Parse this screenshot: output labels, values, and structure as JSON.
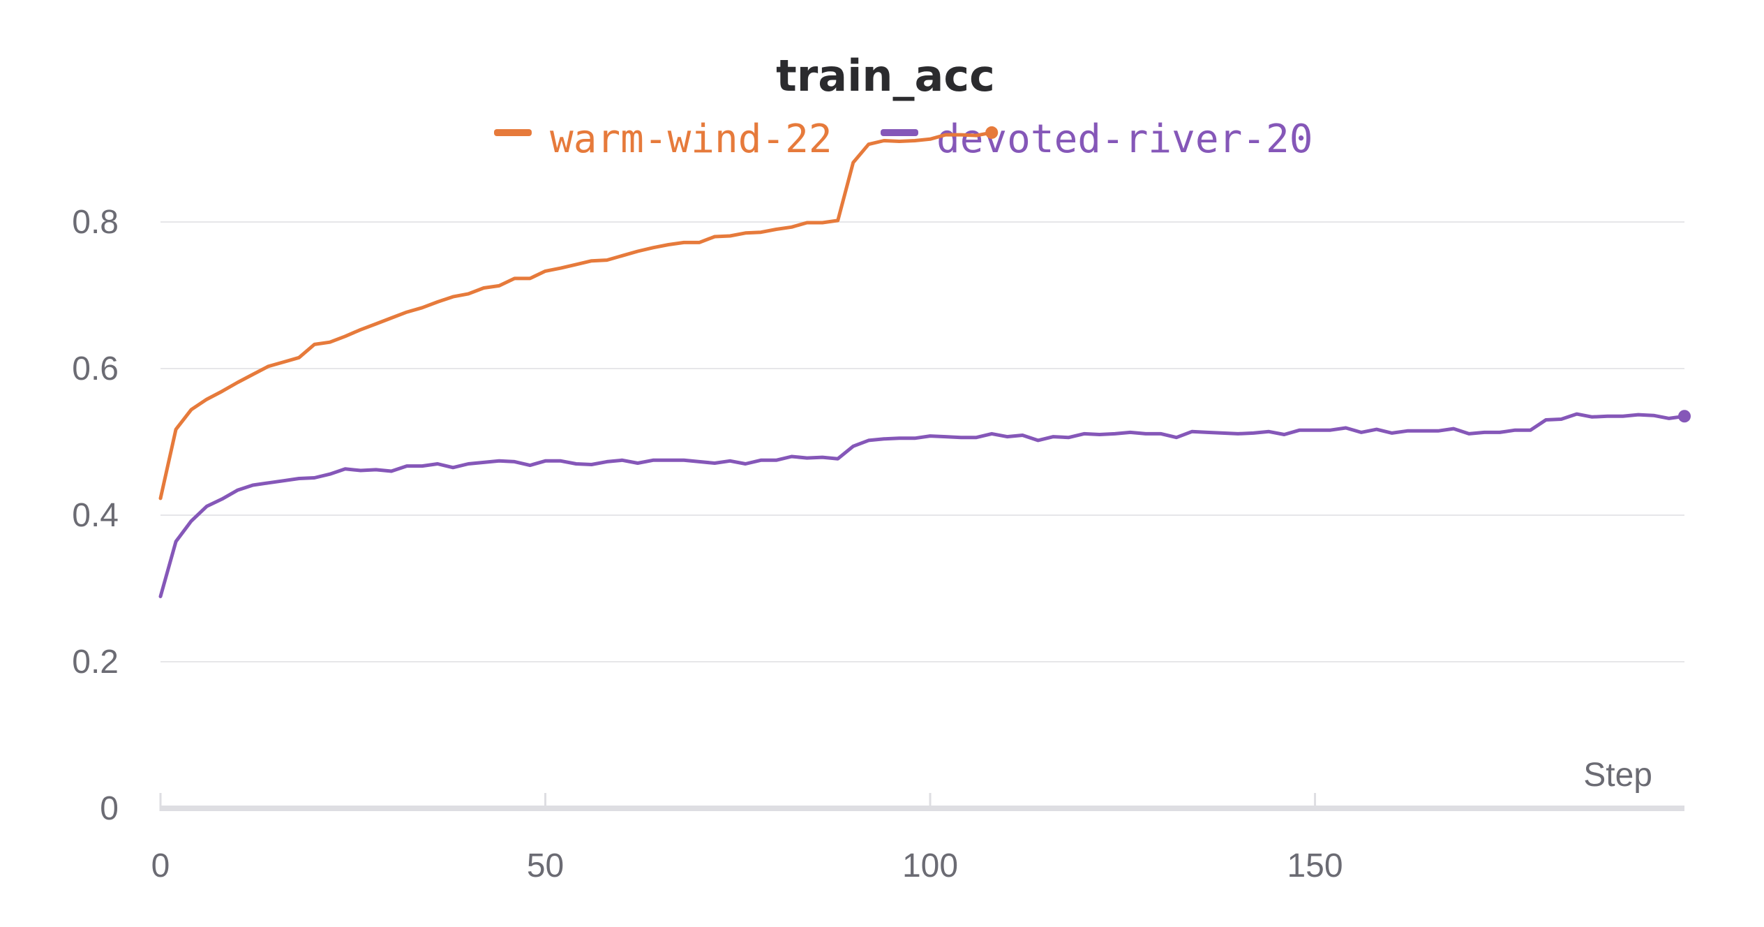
{
  "chart_data": {
    "type": "line",
    "title": "train_acc",
    "xlabel": "Step",
    "ylabel": "",
    "xlim": [
      0,
      198
    ],
    "ylim": [
      0,
      0.9
    ],
    "xticks": [
      0,
      50,
      100,
      150
    ],
    "yticks": [
      0,
      0.2,
      0.4,
      0.6,
      0.8
    ],
    "ytick_labels": [
      "0",
      "0.2",
      "0.4",
      "0.6",
      "0.8"
    ],
    "grid": true,
    "legend_position": "top",
    "series": [
      {
        "name": "warm-wind-22",
        "color": "#e67a3b",
        "x": [
          0,
          2,
          4,
          6,
          8,
          10,
          12,
          14,
          16,
          18,
          20,
          22,
          24,
          26,
          28,
          30,
          32,
          34,
          36,
          38,
          40,
          42,
          44,
          46,
          48,
          50,
          52,
          54,
          56,
          58,
          60,
          62,
          64,
          66,
          68,
          70,
          72,
          74,
          76,
          78,
          80,
          82,
          84,
          86,
          88,
          90,
          92,
          94,
          96,
          98,
          100,
          102,
          104,
          106,
          108
        ],
        "y": [
          0.423,
          0.517,
          0.544,
          0.558,
          0.569,
          0.581,
          0.592,
          0.603,
          0.609,
          0.615,
          0.633,
          0.636,
          0.644,
          0.653,
          0.661,
          0.669,
          0.677,
          0.683,
          0.691,
          0.698,
          0.702,
          0.71,
          0.713,
          0.723,
          0.723,
          0.733,
          0.737,
          0.742,
          0.747,
          0.748,
          0.754,
          0.76,
          0.765,
          0.769,
          0.772,
          0.772,
          0.78,
          0.781,
          0.785,
          0.786,
          0.79,
          0.793,
          0.799,
          0.799,
          0.802,
          0.881,
          0.906,
          0.911,
          0.91,
          0.911,
          0.913,
          0.919,
          0.919,
          0.918,
          0.922
        ]
      },
      {
        "name": "devoted-river-20",
        "color": "#8557b8",
        "x": [
          0,
          2,
          4,
          6,
          8,
          10,
          12,
          14,
          16,
          18,
          20,
          22,
          24,
          26,
          28,
          30,
          32,
          34,
          36,
          38,
          40,
          42,
          44,
          46,
          48,
          50,
          52,
          54,
          56,
          58,
          60,
          62,
          64,
          66,
          68,
          70,
          72,
          74,
          76,
          78,
          80,
          82,
          84,
          86,
          88,
          90,
          92,
          94,
          96,
          98,
          100,
          102,
          104,
          106,
          108,
          110,
          112,
          114,
          116,
          118,
          120,
          122,
          124,
          126,
          128,
          130,
          132,
          134,
          136,
          138,
          140,
          142,
          144,
          146,
          148,
          150,
          152,
          154,
          156,
          158,
          160,
          162,
          164,
          166,
          168,
          170,
          172,
          174,
          176,
          178,
          180,
          182,
          184,
          186,
          188,
          190,
          192,
          194,
          196,
          198
        ],
        "y": [
          0.289,
          0.364,
          0.392,
          0.412,
          0.422,
          0.434,
          0.441,
          0.444,
          0.447,
          0.45,
          0.451,
          0.456,
          0.463,
          0.461,
          0.462,
          0.46,
          0.467,
          0.467,
          0.47,
          0.465,
          0.47,
          0.472,
          0.474,
          0.473,
          0.468,
          0.474,
          0.474,
          0.47,
          0.469,
          0.473,
          0.475,
          0.471,
          0.475,
          0.475,
          0.475,
          0.473,
          0.471,
          0.474,
          0.47,
          0.475,
          0.475,
          0.48,
          0.478,
          0.479,
          0.477,
          0.494,
          0.502,
          0.504,
          0.505,
          0.505,
          0.508,
          0.507,
          0.506,
          0.506,
          0.511,
          0.507,
          0.509,
          0.502,
          0.507,
          0.506,
          0.511,
          0.51,
          0.511,
          0.513,
          0.511,
          0.511,
          0.506,
          0.514,
          0.513,
          0.512,
          0.511,
          0.512,
          0.514,
          0.51,
          0.516,
          0.516,
          0.516,
          0.519,
          0.513,
          0.517,
          0.512,
          0.515,
          0.515,
          0.515,
          0.518,
          0.511,
          0.513,
          0.513,
          0.516,
          0.516,
          0.53,
          0.531,
          0.538,
          0.534,
          0.535,
          0.535,
          0.537,
          0.536,
          0.532,
          0.535
        ]
      }
    ]
  }
}
